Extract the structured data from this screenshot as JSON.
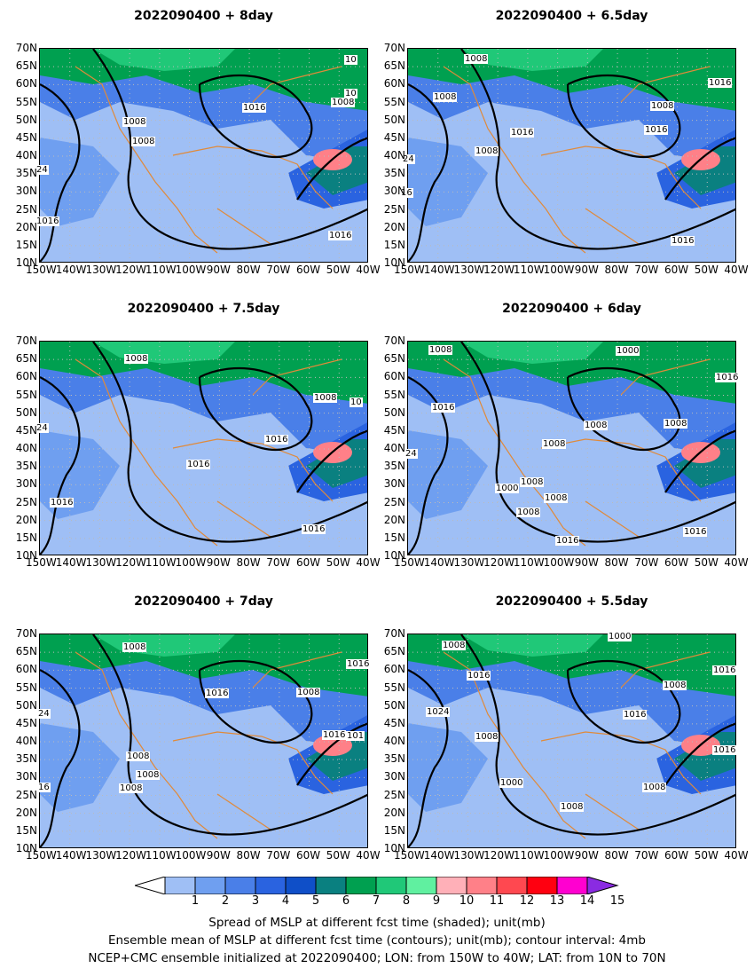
{
  "panels": [
    {
      "title": "2022090400  +  8day",
      "labels": [
        "1008",
        "1008",
        "1016",
        "1008",
        "1016",
        "10",
        "10",
        "24",
        "1016"
      ]
    },
    {
      "title": "2022090400  +  6.5day",
      "labels": [
        "1008",
        "1008",
        "1016",
        "1008",
        "1016",
        "1008",
        "1016",
        "1016",
        "24",
        "16"
      ]
    },
    {
      "title": "2022090400  +  7.5day",
      "labels": [
        "1008",
        "1008",
        "1016",
        "1016",
        "24",
        "1016",
        "1016",
        "10"
      ]
    },
    {
      "title": "2022090400  +  6day",
      "labels": [
        "1008",
        "1000",
        "1016",
        "1008",
        "1008",
        "1000",
        "1008",
        "1008",
        "1008",
        "1016",
        "1008",
        "1016",
        "24",
        "1016"
      ]
    },
    {
      "title": "2022090400  +  7day",
      "labels": [
        "1008",
        "1016",
        "1008",
        "1016",
        "1008",
        "1008",
        "1008",
        "24",
        "16",
        "101",
        "1016"
      ]
    },
    {
      "title": "2022090400  +  5.5day",
      "labels": [
        "1008",
        "1016",
        "1000",
        "1008",
        "1016",
        "1024",
        "1008",
        "1000",
        "1008",
        "1008",
        "1016",
        "1016"
      ]
    }
  ],
  "y_ticks": [
    "70N",
    "65N",
    "60N",
    "55N",
    "50N",
    "45N",
    "40N",
    "35N",
    "30N",
    "25N",
    "20N",
    "15N",
    "10N"
  ],
  "x_ticks": [
    "150W",
    "140W",
    "130W",
    "120W",
    "110W",
    "100W",
    "90W",
    "80W",
    "70W",
    "60W",
    "50W",
    "40W"
  ],
  "colorbar": {
    "ticks": [
      "1",
      "2",
      "3",
      "4",
      "5",
      "6",
      "7",
      "8",
      "9",
      "10",
      "11",
      "12",
      "13",
      "14",
      "15"
    ],
    "colors": [
      "#ffffff",
      "#9fbff5",
      "#6f9ff0",
      "#4a7fe8",
      "#2a63e0",
      "#0f4fc8",
      "#0a8080",
      "#00a050",
      "#20c878",
      "#60f0a0",
      "#ffb0b8",
      "#ff8088",
      "#ff4850",
      "#ff0010",
      "#ff00d0",
      "#8a2be2"
    ]
  },
  "footer": [
    "Spread of MSLP at different fcst time (shaded); unit(mb)",
    "Ensemble mean of MSLP at different fcst time (contours); unit(mb); contour interval: 4mb",
    "NCEP+CMC ensemble initialized at 2022090400; LON: from 150W to 40W; LAT: from 10N to 70N"
  ]
}
